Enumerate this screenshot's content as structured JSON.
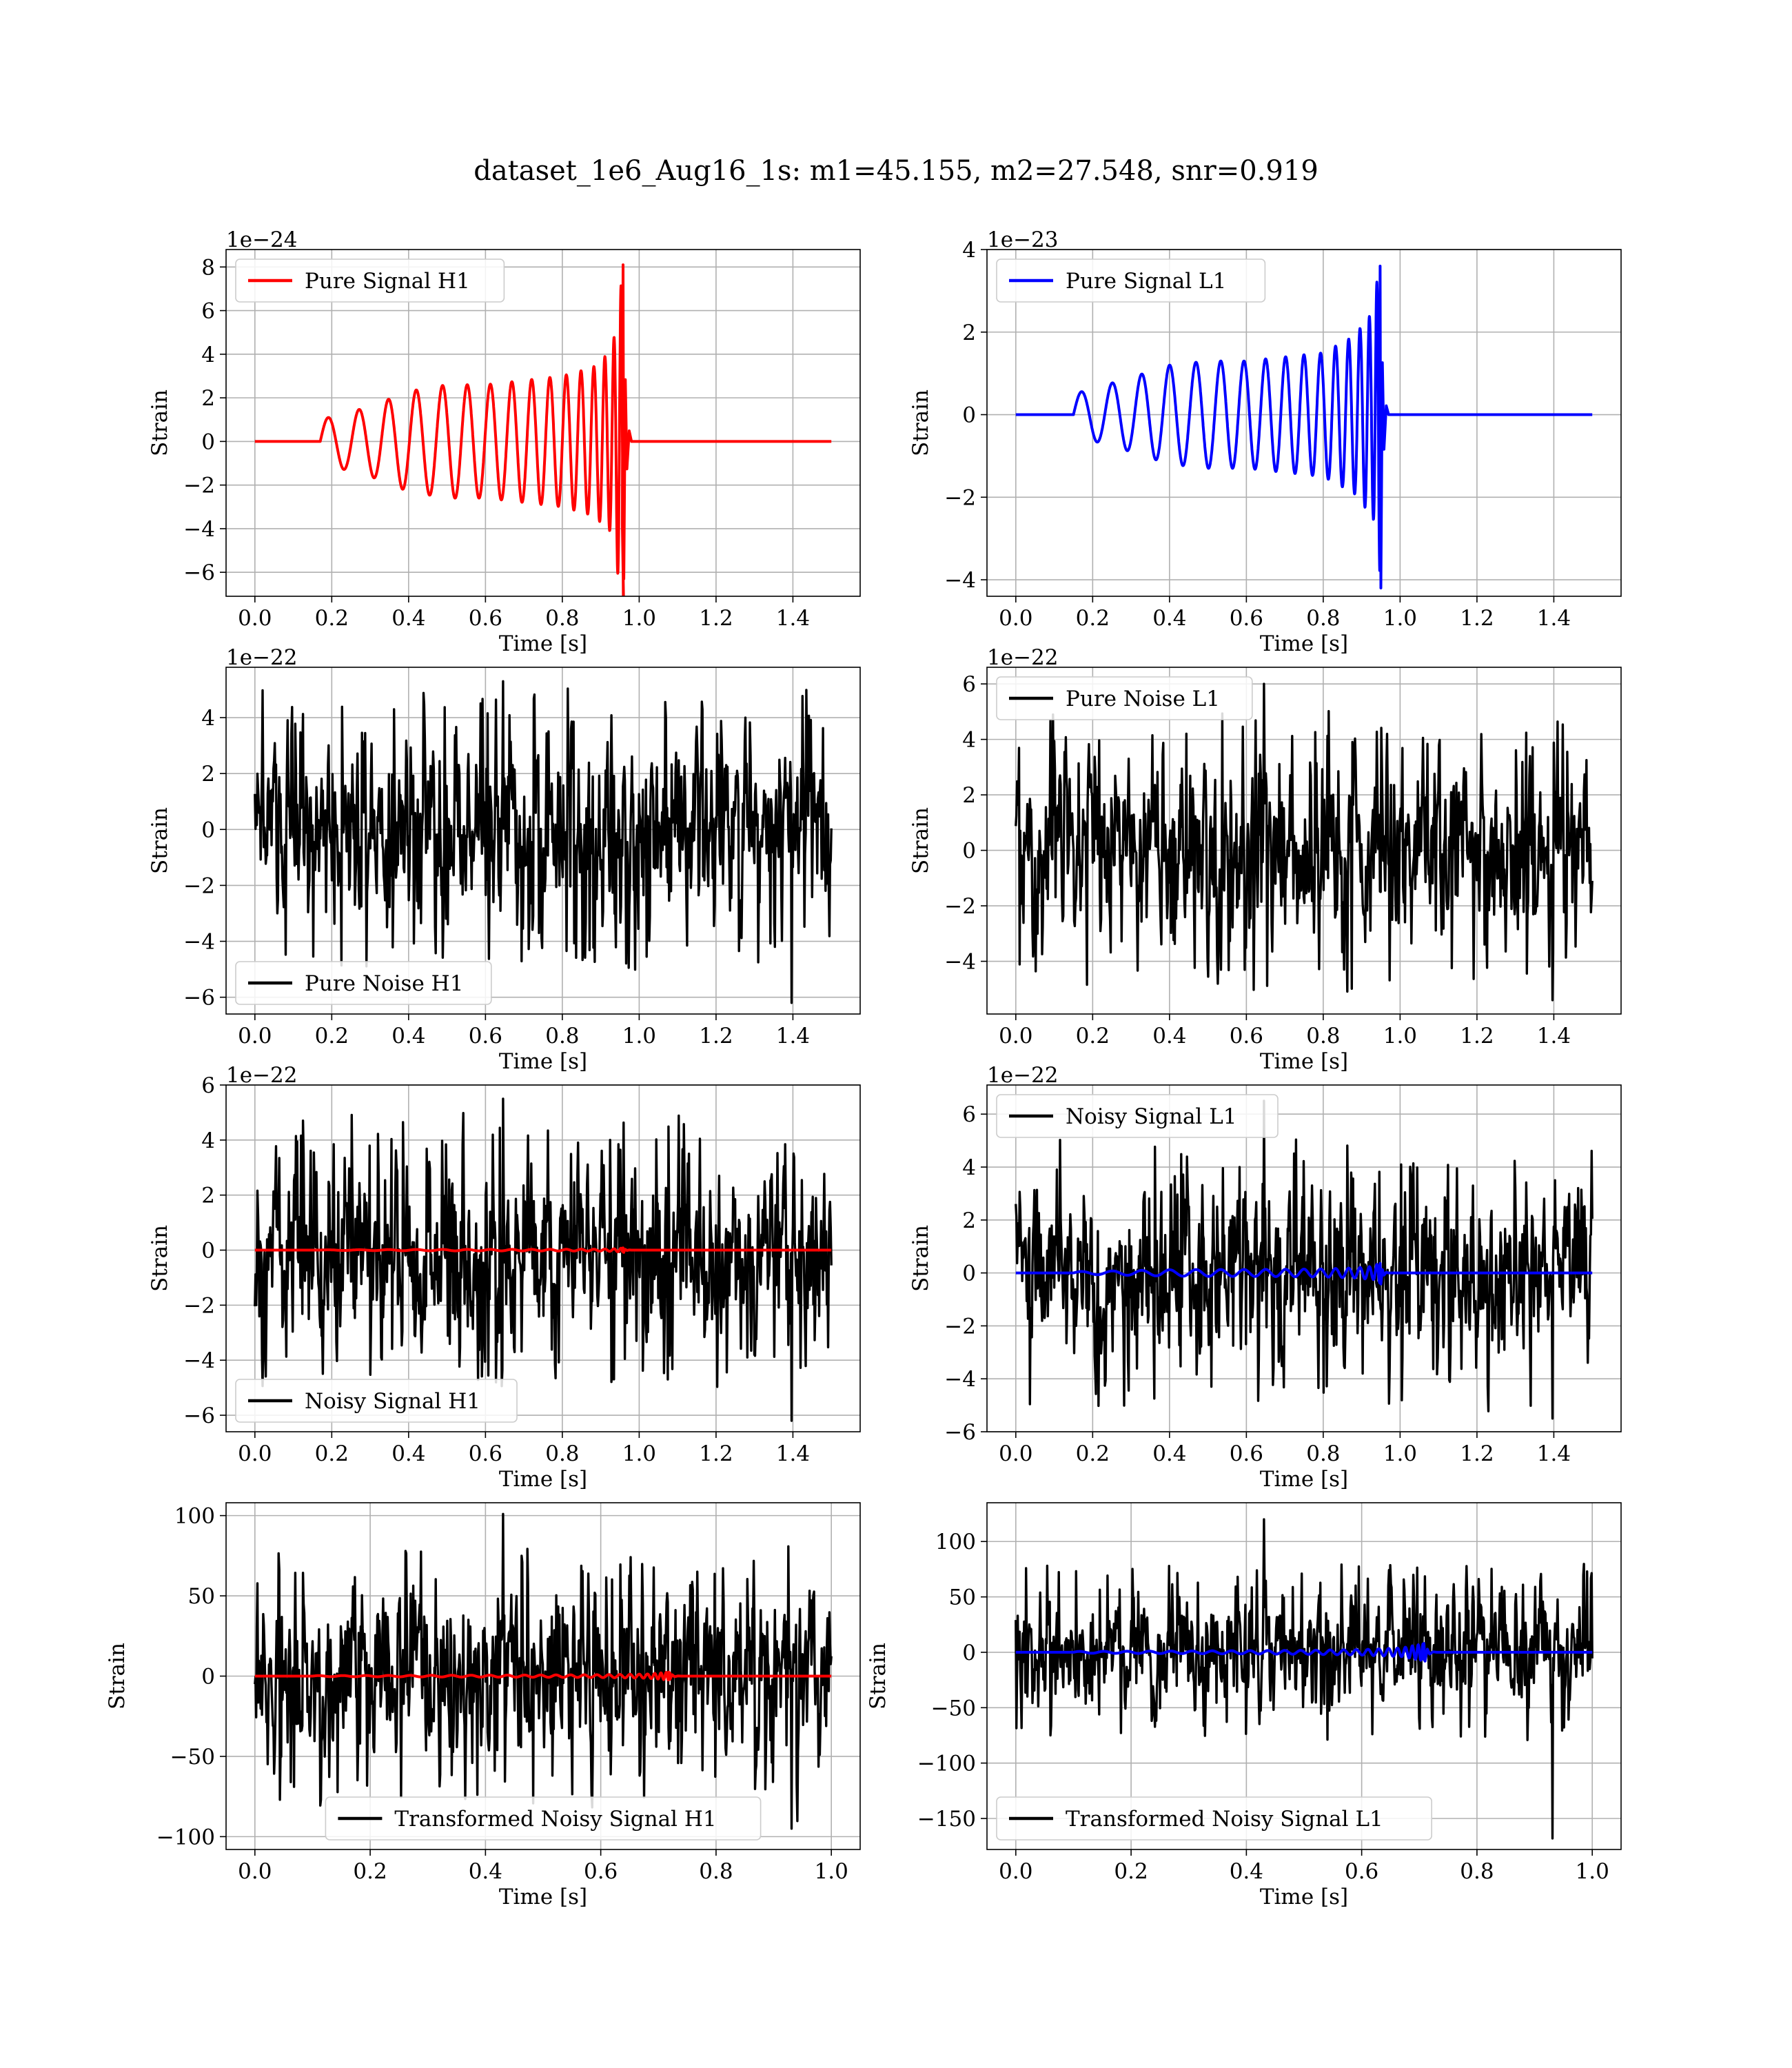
{
  "title": "dataset_1e6_Aug16_1s: m1=45.155, m2=27.548, snr=0.919",
  "colors": {
    "h1_signal": "#ff0000",
    "l1_signal": "#0000ff",
    "noise": "#000000",
    "grid": "#b0b0b0"
  },
  "chart_data": [
    {
      "type": "line",
      "id": "pure-signal-h1",
      "xlabel": "Time [s]",
      "ylabel": "Strain",
      "offset_text": "1e−24",
      "xlim": [
        -0.075,
        1.575
      ],
      "ylim": [
        -7.1,
        8.8
      ],
      "xticks": [
        0.0,
        0.2,
        0.4,
        0.6,
        0.8,
        1.0,
        1.2,
        1.4
      ],
      "xtick_labels": [
        "0.0",
        "0.2",
        "0.4",
        "0.6",
        "0.8",
        "1.0",
        "1.2",
        "1.4"
      ],
      "yticks": [
        -6,
        -4,
        -2,
        0,
        2,
        4,
        6,
        8
      ],
      "ytick_labels": [
        "−6",
        "−4",
        "−2",
        "0",
        "2",
        "4",
        "6",
        "8"
      ],
      "legend_loc": "upper-left",
      "grid": true,
      "series": [
        {
          "name": "Pure Signal H1",
          "color": "#ff0000",
          "kind": "chirp",
          "x_range": [
            0.0,
            1.5
          ],
          "t_start": 0.17,
          "t_merge": 0.96,
          "peak_max": 8.1,
          "peak_min": -6.3,
          "envelope": [
            [
              0.17,
              1.0
            ],
            [
              0.3,
              1.6
            ],
            [
              0.4,
              2.3
            ],
            [
              0.5,
              2.6
            ],
            [
              0.6,
              2.6
            ],
            [
              0.7,
              2.8
            ],
            [
              0.8,
              3.0
            ],
            [
              0.88,
              3.4
            ],
            [
              0.93,
              4.2
            ],
            [
              0.96,
              8.1
            ]
          ]
        }
      ]
    },
    {
      "type": "line",
      "id": "pure-signal-l1",
      "xlabel": "Time [s]",
      "ylabel": "Strain",
      "offset_text": "1e−23",
      "xlim": [
        -0.075,
        1.575
      ],
      "ylim": [
        -4.4,
        4.0
      ],
      "xticks": [
        0.0,
        0.2,
        0.4,
        0.6,
        0.8,
        1.0,
        1.2,
        1.4
      ],
      "xtick_labels": [
        "0.0",
        "0.2",
        "0.4",
        "0.6",
        "0.8",
        "1.0",
        "1.2",
        "1.4"
      ],
      "yticks": [
        -4,
        -2,
        0,
        2,
        4
      ],
      "ytick_labels": [
        "−4",
        "−2",
        "0",
        "2",
        "4"
      ],
      "legend_loc": "upper-left",
      "grid": true,
      "series": [
        {
          "name": "Pure Signal L1",
          "color": "#0000ff",
          "kind": "chirp",
          "x_range": [
            0.0,
            1.5
          ],
          "t_start": 0.15,
          "t_merge": 0.95,
          "peak_max": 3.6,
          "peak_min": -4.2,
          "envelope": [
            [
              0.15,
              0.5
            ],
            [
              0.3,
              0.9
            ],
            [
              0.4,
              1.2
            ],
            [
              0.5,
              1.3
            ],
            [
              0.6,
              1.3
            ],
            [
              0.7,
              1.4
            ],
            [
              0.8,
              1.5
            ],
            [
              0.88,
              1.9
            ],
            [
              0.93,
              2.5
            ],
            [
              0.95,
              4.0
            ]
          ]
        }
      ]
    },
    {
      "type": "line",
      "id": "pure-noise-h1",
      "xlabel": "Time [s]",
      "ylabel": "Strain",
      "offset_text": "1e−22",
      "xlim": [
        -0.075,
        1.575
      ],
      "ylim": [
        -6.6,
        5.8
      ],
      "xticks": [
        0.0,
        0.2,
        0.4,
        0.6,
        0.8,
        1.0,
        1.2,
        1.4
      ],
      "xtick_labels": [
        "0.0",
        "0.2",
        "0.4",
        "0.6",
        "0.8",
        "1.0",
        "1.2",
        "1.4"
      ],
      "yticks": [
        -6,
        -4,
        -2,
        0,
        2,
        4
      ],
      "ytick_labels": [
        "−6",
        "−4",
        "−2",
        "0",
        "2",
        "4"
      ],
      "legend_loc": "lower-left",
      "grid": true,
      "series": [
        {
          "name": "Pure Noise H1",
          "color": "#000000",
          "kind": "noise",
          "x_range": [
            0.0,
            1.5
          ],
          "typical": 2.8,
          "max": 5.3,
          "min": -6.2
        }
      ]
    },
    {
      "type": "line",
      "id": "pure-noise-l1",
      "xlabel": "Time [s]",
      "ylabel": "Strain",
      "offset_text": "1e−22",
      "xlim": [
        -0.075,
        1.575
      ],
      "ylim": [
        -5.9,
        6.6
      ],
      "xticks": [
        0.0,
        0.2,
        0.4,
        0.6,
        0.8,
        1.0,
        1.2,
        1.4
      ],
      "xtick_labels": [
        "0.0",
        "0.2",
        "0.4",
        "0.6",
        "0.8",
        "1.0",
        "1.2",
        "1.4"
      ],
      "yticks": [
        -4,
        -2,
        0,
        2,
        4,
        6
      ],
      "ytick_labels": [
        "−4",
        "−2",
        "0",
        "2",
        "4",
        "6"
      ],
      "legend_loc": "upper-left",
      "grid": true,
      "series": [
        {
          "name": "Pure Noise L1",
          "color": "#000000",
          "kind": "noise",
          "x_range": [
            0.0,
            1.5
          ],
          "typical": 2.8,
          "max": 6.0,
          "min": -5.4
        }
      ]
    },
    {
      "type": "line",
      "id": "noisy-signal-h1",
      "xlabel": "Time [s]",
      "ylabel": "Strain",
      "offset_text": "1e−22",
      "xlim": [
        -0.075,
        1.575
      ],
      "ylim": [
        -6.6,
        6.0
      ],
      "xticks": [
        0.0,
        0.2,
        0.4,
        0.6,
        0.8,
        1.0,
        1.2,
        1.4
      ],
      "xtick_labels": [
        "0.0",
        "0.2",
        "0.4",
        "0.6",
        "0.8",
        "1.0",
        "1.2",
        "1.4"
      ],
      "yticks": [
        -6,
        -4,
        -2,
        0,
        2,
        4,
        6
      ],
      "ytick_labels": [
        "−6",
        "−4",
        "−2",
        "0",
        "2",
        "4",
        "6"
      ],
      "legend_loc": "lower-left",
      "grid": true,
      "series": [
        {
          "name": "Noisy Signal H1",
          "color": "#000000",
          "kind": "noise",
          "x_range": [
            0.0,
            1.5
          ],
          "typical": 2.8,
          "max": 5.5,
          "min": -6.2
        },
        {
          "name": "",
          "color": "#ff0000",
          "kind": "chirp",
          "x_range": [
            0.0,
            1.5
          ],
          "t_start": 0.17,
          "t_merge": 0.96,
          "peak_max": 0.081,
          "peak_min": -0.063,
          "envelope": [
            [
              0.17,
              0.01
            ],
            [
              0.3,
              0.016
            ],
            [
              0.4,
              0.023
            ],
            [
              0.5,
              0.026
            ],
            [
              0.6,
              0.026
            ],
            [
              0.7,
              0.028
            ],
            [
              0.8,
              0.03
            ],
            [
              0.88,
              0.034
            ],
            [
              0.93,
              0.042
            ],
            [
              0.96,
              0.081
            ]
          ]
        }
      ]
    },
    {
      "type": "line",
      "id": "noisy-signal-l1",
      "xlabel": "Time [s]",
      "ylabel": "Strain",
      "offset_text": "1e−22",
      "xlim": [
        -0.075,
        1.575
      ],
      "ylim": [
        -6.0,
        7.1
      ],
      "xticks": [
        0.0,
        0.2,
        0.4,
        0.6,
        0.8,
        1.0,
        1.2,
        1.4
      ],
      "xtick_labels": [
        "0.0",
        "0.2",
        "0.4",
        "0.6",
        "0.8",
        "1.0",
        "1.2",
        "1.4"
      ],
      "yticks": [
        -6,
        -4,
        -2,
        0,
        2,
        4,
        6
      ],
      "ytick_labels": [
        "−6",
        "−4",
        "−2",
        "0",
        "2",
        "4",
        "6"
      ],
      "legend_loc": "upper-left",
      "grid": true,
      "series": [
        {
          "name": "Noisy Signal L1",
          "color": "#000000",
          "kind": "noise",
          "x_range": [
            0.0,
            1.5
          ],
          "typical": 2.8,
          "max": 6.5,
          "min": -5.5
        },
        {
          "name": "",
          "color": "#0000ff",
          "kind": "chirp",
          "x_range": [
            0.0,
            1.5
          ],
          "t_start": 0.15,
          "t_merge": 0.95,
          "peak_max": 0.36,
          "peak_min": -0.42,
          "envelope": [
            [
              0.15,
              0.05
            ],
            [
              0.3,
              0.09
            ],
            [
              0.4,
              0.12
            ],
            [
              0.5,
              0.13
            ],
            [
              0.6,
              0.13
            ],
            [
              0.7,
              0.14
            ],
            [
              0.8,
              0.15
            ],
            [
              0.88,
              0.19
            ],
            [
              0.93,
              0.25
            ],
            [
              0.95,
              0.4
            ]
          ]
        }
      ]
    },
    {
      "type": "line",
      "id": "transformed-noisy-signal-h1",
      "xlabel": "Time [s]",
      "ylabel": "Strain",
      "offset_text": "",
      "xlim": [
        -0.05,
        1.05
      ],
      "ylim": [
        -108,
        108
      ],
      "xticks": [
        0.0,
        0.2,
        0.4,
        0.6,
        0.8,
        1.0
      ],
      "xtick_labels": [
        "0.0",
        "0.2",
        "0.4",
        "0.6",
        "0.8",
        "1.0"
      ],
      "yticks": [
        -100,
        -50,
        0,
        50,
        100
      ],
      "ytick_labels": [
        "−100",
        "−50",
        "0",
        "50",
        "100"
      ],
      "legend_loc": "lower-center",
      "grid": true,
      "series": [
        {
          "name": "Transformed Noisy Signal H1",
          "color": "#000000",
          "kind": "noise",
          "x_range": [
            0.0,
            1.0
          ],
          "typical": 45,
          "max": 101,
          "min": -95
        },
        {
          "name": "",
          "color": "#ff0000",
          "kind": "chirp",
          "x_range": [
            0.0,
            1.0
          ],
          "t_start": 0.1,
          "t_merge": 0.72,
          "peak_max": 2.5,
          "peak_min": -2.0,
          "envelope": [
            [
              0.1,
              0.3
            ],
            [
              0.3,
              0.5
            ],
            [
              0.5,
              0.7
            ],
            [
              0.6,
              0.9
            ],
            [
              0.68,
              1.3
            ],
            [
              0.72,
              2.5
            ]
          ]
        }
      ]
    },
    {
      "type": "line",
      "id": "transformed-noisy-signal-l1",
      "xlabel": "Time [s]",
      "ylabel": "Strain",
      "offset_text": "",
      "xlim": [
        -0.05,
        1.05
      ],
      "ylim": [
        -178,
        135
      ],
      "xticks": [
        0.0,
        0.2,
        0.4,
        0.6,
        0.8,
        1.0
      ],
      "xtick_labels": [
        "0.0",
        "0.2",
        "0.4",
        "0.6",
        "0.8",
        "1.0"
      ],
      "yticks": [
        -150,
        -100,
        -50,
        0,
        50,
        100
      ],
      "ytick_labels": [
        "−150",
        "−100",
        "−50",
        "0",
        "50",
        "100"
      ],
      "legend_loc": "lower-left",
      "grid": true,
      "series": [
        {
          "name": "Transformed Noisy Signal L1",
          "color": "#000000",
          "kind": "noise",
          "x_range": [
            0.0,
            1.0
          ],
          "typical": 45,
          "max": 120,
          "min": -168
        },
        {
          "name": "",
          "color": "#0000ff",
          "kind": "chirp",
          "x_range": [
            0.0,
            1.0
          ],
          "t_start": 0.1,
          "t_merge": 0.71,
          "peak_max": 8,
          "peak_min": -8,
          "envelope": [
            [
              0.1,
              0.8
            ],
            [
              0.3,
              1.2
            ],
            [
              0.5,
              1.8
            ],
            [
              0.6,
              2.5
            ],
            [
              0.67,
              4
            ],
            [
              0.71,
              8
            ]
          ]
        }
      ]
    }
  ]
}
